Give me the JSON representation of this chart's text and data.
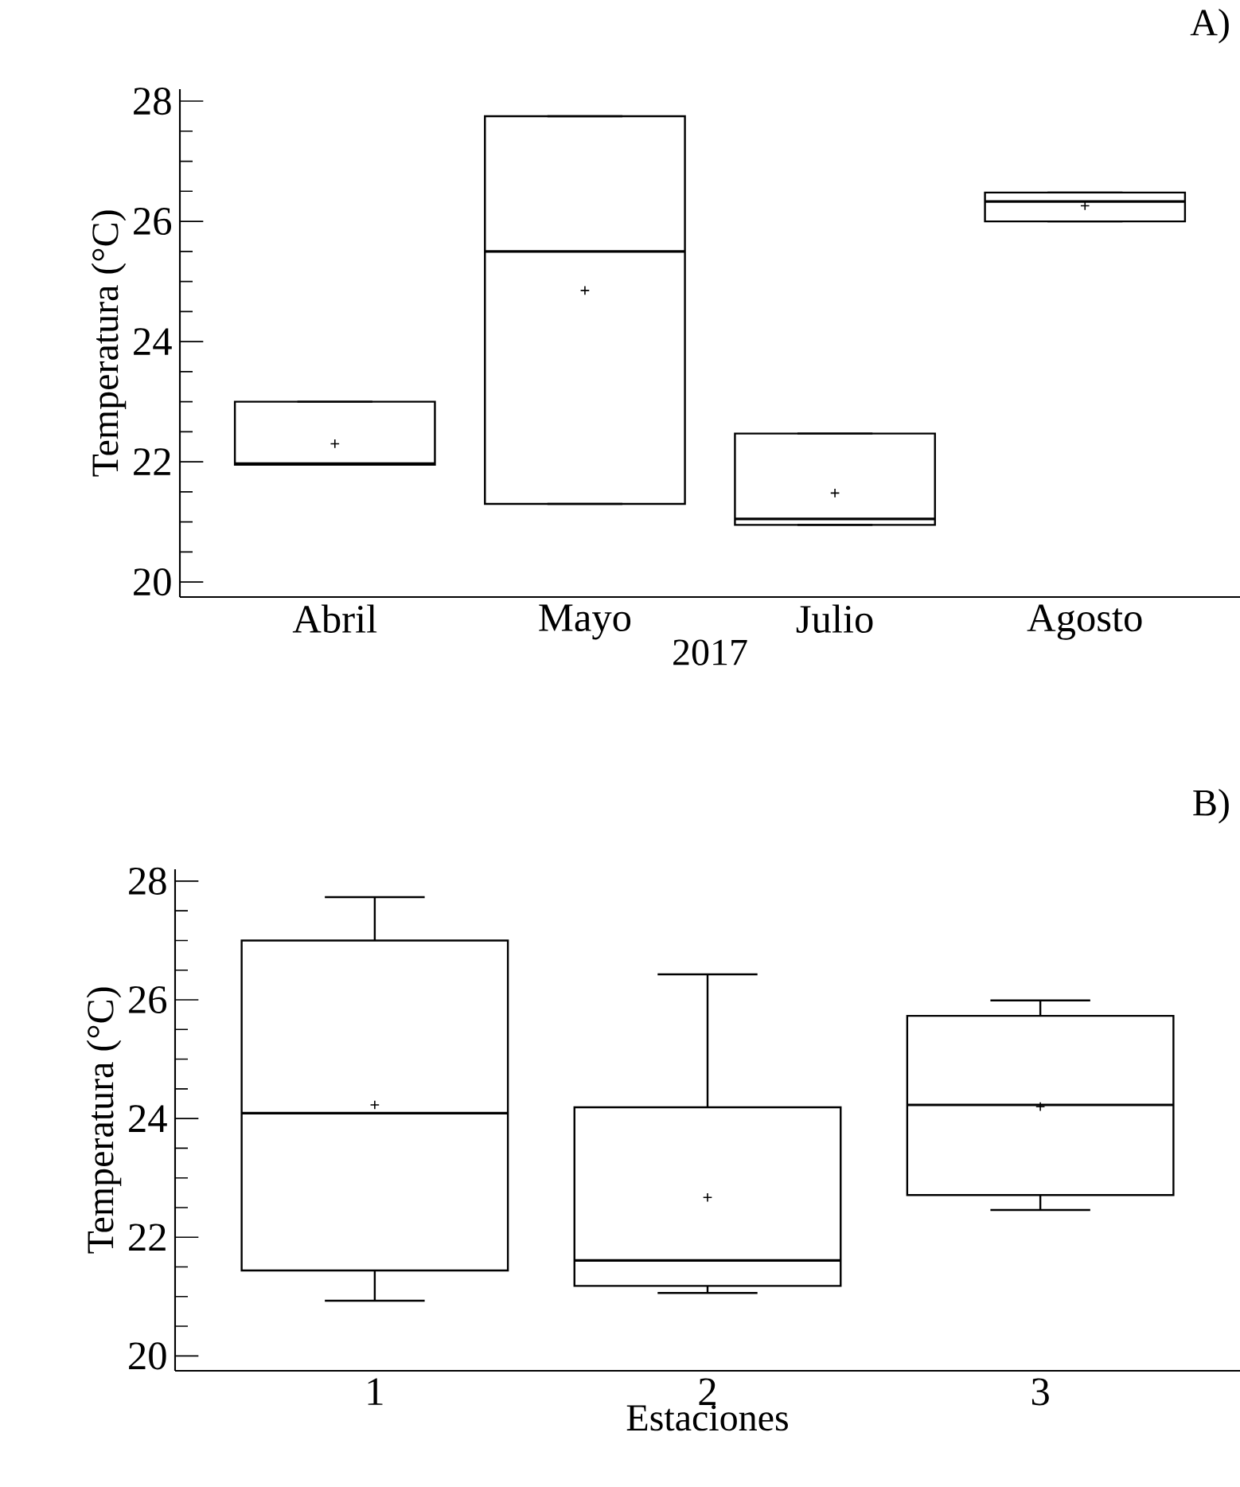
{
  "chart_data": [
    {
      "type": "box",
      "title": "A)",
      "xlabel": "2017",
      "ylabel": "Temperatura (°C)",
      "categories": [
        "Abril",
        "Mayo",
        "Julio",
        "Agosto"
      ],
      "boxes": [
        {
          "low": 21.95,
          "q1": 21.95,
          "median": 21.97,
          "q3": 23.0,
          "high": 23.0,
          "mean": 22.3
        },
        {
          "low": 21.3,
          "q1": 21.3,
          "median": 25.5,
          "q3": 27.75,
          "high": 27.75,
          "mean": 24.85
        },
        {
          "low": 20.95,
          "q1": 20.95,
          "median": 21.05,
          "q3": 22.47,
          "high": 22.47,
          "mean": 21.48
        },
        {
          "low": 26.0,
          "q1": 26.0,
          "median": 26.33,
          "q3": 26.48,
          "high": 26.48,
          "mean": 26.26
        }
      ],
      "ylim": [
        19.75,
        28.2
      ],
      "yticks": [
        20,
        22,
        24,
        26,
        28
      ]
    },
    {
      "type": "box",
      "title": "B)",
      "xlabel": "Estaciones",
      "ylabel": "Temperatura (°C)",
      "categories": [
        "1",
        "2",
        "3"
      ],
      "boxes": [
        {
          "low": 20.93,
          "q1": 21.44,
          "median": 24.09,
          "q3": 27.0,
          "high": 27.73,
          "mean": 24.23
        },
        {
          "low": 21.06,
          "q1": 21.18,
          "median": 21.61,
          "q3": 24.19,
          "high": 26.43,
          "mean": 22.67
        },
        {
          "low": 22.46,
          "q1": 22.71,
          "median": 24.23,
          "q3": 25.73,
          "high": 25.99,
          "mean": 24.2
        }
      ],
      "ylim": [
        19.75,
        28.2
      ],
      "yticks": [
        20,
        22,
        24,
        26,
        28
      ]
    }
  ]
}
